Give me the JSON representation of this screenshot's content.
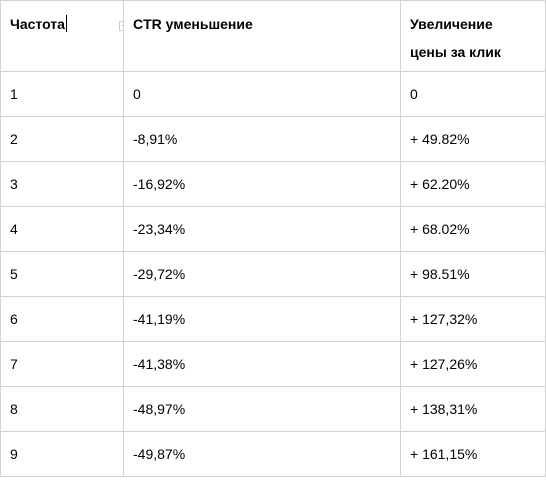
{
  "table": {
    "headers": [
      {
        "label": "Частота"
      },
      {
        "label": "CTR уменьшение"
      },
      {
        "label_line1": "Увеличение",
        "label_line2": "цены за клик"
      }
    ],
    "rows": [
      {
        "frequency": "1",
        "ctr_decrease": "0",
        "cpc_increase": "0"
      },
      {
        "frequency": "2",
        "ctr_decrease": "-8,91%",
        "cpc_increase": "+ 49.82%"
      },
      {
        "frequency": "3",
        "ctr_decrease": "-16,92%",
        "cpc_increase": "+ 62.20%"
      },
      {
        "frequency": "4",
        "ctr_decrease": "-23,34%",
        "cpc_increase": "+ 68.02%"
      },
      {
        "frequency": "5",
        "ctr_decrease": "-29,72%",
        "cpc_increase": "+ 98.51%"
      },
      {
        "frequency": "6",
        "ctr_decrease": "-41,19%",
        "cpc_increase": "+ 127,32%"
      },
      {
        "frequency": "7",
        "ctr_decrease": "-41,38%",
        "cpc_increase": "+ 127,26%"
      },
      {
        "frequency": "8",
        "ctr_decrease": "-48,97%",
        "cpc_increase": "+ 138,31%"
      },
      {
        "frequency": "9",
        "ctr_decrease": "-49,87%",
        "cpc_increase": "+ 161,15%"
      }
    ]
  },
  "icons": {
    "filter": "filter-dropdown-icon",
    "cursor": "text-cursor"
  }
}
